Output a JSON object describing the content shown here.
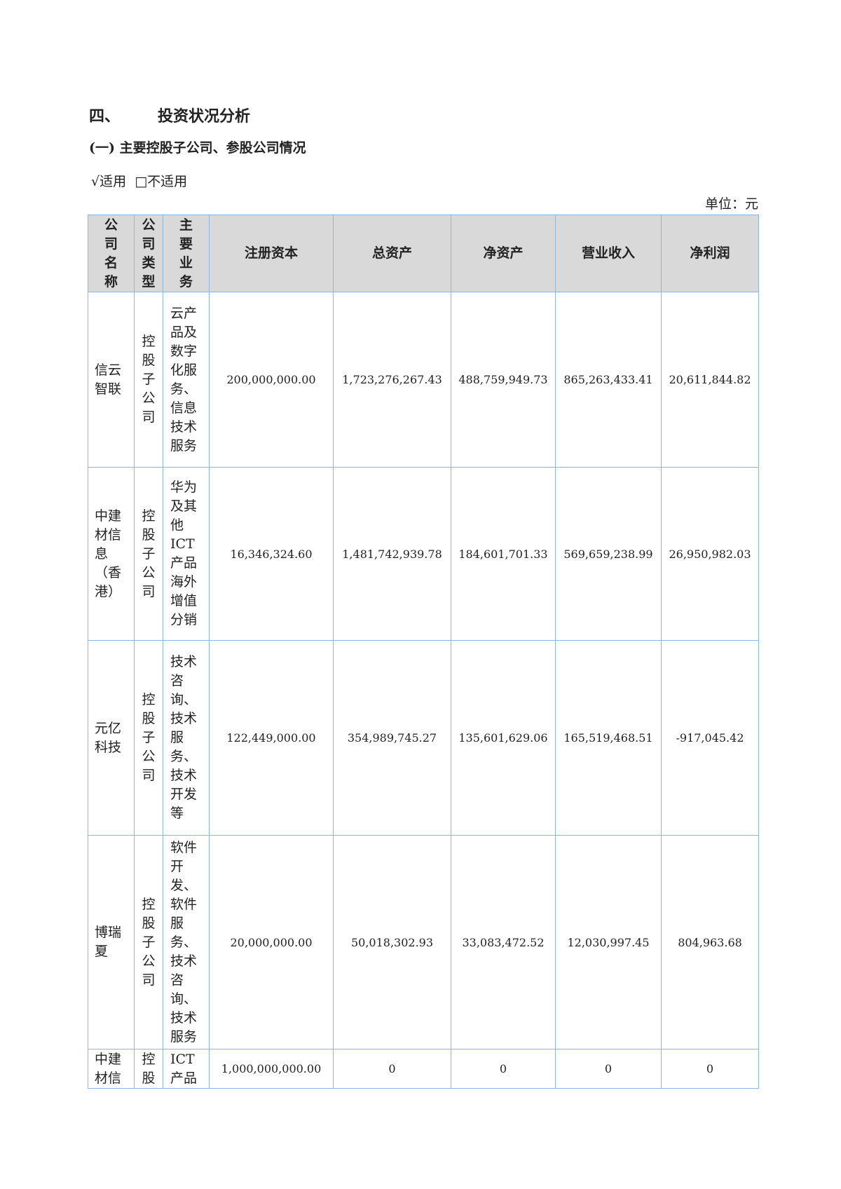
{
  "section": {
    "number": "四、",
    "title": "投资状况分析"
  },
  "subsection": {
    "title": "(一) 主要控股子公司、参股公司情况"
  },
  "applicability": {
    "applicable": "√适用",
    "not_applicable": "□不适用"
  },
  "unit": "单位：元",
  "table": {
    "headers": [
      {
        "lines": [
          "公",
          "司",
          "名",
          "称"
        ]
      },
      {
        "lines": [
          "公",
          "司",
          "类",
          "型"
        ]
      },
      {
        "lines": [
          "主",
          "要",
          "业",
          "务"
        ]
      },
      {
        "lines": [
          "注册资本"
        ]
      },
      {
        "lines": [
          "总资产"
        ]
      },
      {
        "lines": [
          "净资产"
        ]
      },
      {
        "lines": [
          "营业收入"
        ]
      },
      {
        "lines": [
          "净利润"
        ]
      }
    ],
    "rows": [
      {
        "name": [
          "信云",
          "智联"
        ],
        "type": [
          "控",
          "股",
          "子",
          "公",
          "司"
        ],
        "business": [
          "云产",
          "品及",
          "数字",
          "化服",
          "务、",
          "信息",
          "技术",
          "服务"
        ],
        "registered_capital": "200,000,000.00",
        "total_assets": "1,723,276,267.43",
        "net_assets": "488,759,949.73",
        "revenue": "865,263,433.41",
        "net_profit": "20,611,844.82"
      },
      {
        "name": [
          "中建",
          "材信",
          "息",
          "（香",
          "港）"
        ],
        "type": [
          "控",
          "股",
          "子",
          "公",
          "司"
        ],
        "business": [
          "华为",
          "及其",
          "他",
          "ICT",
          "产品",
          "海外",
          "增值",
          "分销"
        ],
        "registered_capital": "16,346,324.60",
        "total_assets": "1,481,742,939.78",
        "net_assets": "184,601,701.33",
        "revenue": "569,659,238.99",
        "net_profit": "26,950,982.03"
      },
      {
        "name": [
          "元亿",
          "科技"
        ],
        "type": [
          "控",
          "股",
          "子",
          "公",
          "司"
        ],
        "business": [
          "技术",
          "咨",
          "询、",
          "技术",
          "服",
          "务、",
          "技术",
          "开发",
          "等"
        ],
        "registered_capital": "122,449,000.00",
        "total_assets": "354,989,745.27",
        "net_assets": "135,601,629.06",
        "revenue": "165,519,468.51",
        "net_profit": "-917,045.42"
      },
      {
        "name": [
          "博瑞",
          "夏"
        ],
        "type": [
          "控",
          "股",
          "子",
          "公",
          "司"
        ],
        "business": [
          "软件",
          "开",
          "发、",
          "软件",
          "服",
          "务、",
          "技术",
          "咨",
          "询、",
          "技术",
          "服务"
        ],
        "registered_capital": "20,000,000.00",
        "total_assets": "50,018,302.93",
        "net_assets": "33,083,472.52",
        "revenue": "12,030,997.45",
        "net_profit": "804,963.68"
      },
      {
        "name": [
          "中建",
          "材信"
        ],
        "type": [
          "控",
          "股"
        ],
        "business": [
          "ICT",
          "产品"
        ],
        "registered_capital": "1,000,000,000.00",
        "total_assets": "0",
        "net_assets": "0",
        "revenue": "0",
        "net_profit": "0"
      }
    ]
  },
  "colors": {
    "border": "#8fb4e3",
    "header_bg": "#d9d9d9"
  }
}
